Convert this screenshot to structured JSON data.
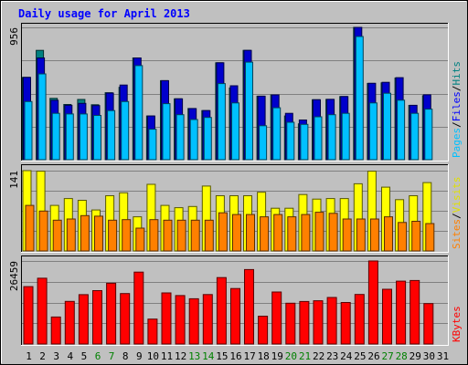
{
  "title": "Daily usage for April 2013",
  "chart_data": [
    {
      "type": "bar",
      "panel": "hits-files-pages",
      "categories": [
        "1",
        "2",
        "3",
        "4",
        "5",
        "6",
        "7",
        "8",
        "9",
        "10",
        "11",
        "12",
        "13",
        "14",
        "15",
        "16",
        "17",
        "18",
        "19",
        "20",
        "21",
        "22",
        "23",
        "24",
        "25",
        "26",
        "27",
        "28",
        "29",
        "30",
        "31"
      ],
      "max_label": "956",
      "ymax": 956,
      "legend": [
        {
          "label": "Pages",
          "color": "#00c0ff"
        },
        {
          "label": "/",
          "color": "#000000"
        },
        {
          "label": "Files",
          "color": "#0000ff"
        },
        {
          "label": "/",
          "color": "#000000"
        },
        {
          "label": "Hits",
          "color": "#008080"
        }
      ],
      "series": [
        {
          "name": "Hits",
          "color": "#008080",
          "values": [
            595,
            790,
            443,
            399,
            435,
            397,
            484,
            523,
            735,
            316,
            571,
            440,
            370,
            355,
            700,
            518,
            790,
            459,
            468,
            316,
            259,
            433,
            436,
            456,
            956,
            551,
            555,
            590,
            392,
            462,
            0
          ]
        },
        {
          "name": "Files",
          "color": "#0000cc",
          "values": [
            595,
            735,
            429,
            393,
            407,
            391,
            481,
            539,
            735,
            316,
            571,
            440,
            369,
            355,
            700,
            534,
            790,
            459,
            468,
            335,
            287,
            433,
            436,
            456,
            956,
            552,
            559,
            593,
            393,
            469,
            0
          ]
        },
        {
          "name": "Pages",
          "color": "#00c0ff",
          "values": [
            420,
            620,
            335,
            330,
            330,
            320,
            355,
            420,
            680,
            220,
            405,
            325,
            290,
            305,
            550,
            410,
            705,
            245,
            375,
            270,
            255,
            310,
            325,
            335,
            890,
            410,
            480,
            430,
            335,
            365,
            0
          ]
        }
      ]
    },
    {
      "type": "bar",
      "panel": "visits-sites",
      "categories": [
        "1",
        "2",
        "3",
        "4",
        "5",
        "6",
        "7",
        "8",
        "9",
        "10",
        "11",
        "12",
        "13",
        "14",
        "15",
        "16",
        "17",
        "18",
        "19",
        "20",
        "21",
        "22",
        "23",
        "24",
        "25",
        "26",
        "27",
        "28",
        "29",
        "30",
        "31"
      ],
      "max_label": "141",
      "ymax": 141,
      "legend": [
        {
          "label": "Sites",
          "color": "#ff8000"
        },
        {
          "label": "/",
          "color": "#000000"
        },
        {
          "label": "Visits",
          "color": "#e0e000"
        }
      ],
      "series": [
        {
          "name": "Visits",
          "color": "#ffff00",
          "values": [
            141,
            140,
            80,
            92,
            89,
            72,
            97,
            102,
            60,
            117,
            80,
            76,
            78,
            114,
            97,
            97,
            97,
            103,
            75,
            75,
            99,
            91,
            92,
            92,
            118,
            140,
            112,
            90,
            97,
            120,
            0
          ]
        },
        {
          "name": "Sites",
          "color": "#ff8000",
          "values": [
            80,
            70,
            54,
            56,
            62,
            61,
            54,
            55,
            40,
            55,
            54,
            54,
            54,
            54,
            67,
            64,
            64,
            60,
            64,
            60,
            64,
            68,
            66,
            56,
            56,
            56,
            60,
            50,
            52,
            48,
            0
          ]
        }
      ]
    },
    {
      "type": "bar",
      "panel": "kbytes",
      "categories": [
        "1",
        "2",
        "3",
        "4",
        "5",
        "6",
        "7",
        "8",
        "9",
        "10",
        "11",
        "12",
        "13",
        "14",
        "15",
        "16",
        "17",
        "18",
        "19",
        "20",
        "21",
        "22",
        "23",
        "24",
        "25",
        "26",
        "27",
        "28",
        "29",
        "30",
        "31"
      ],
      "max_label": "26459",
      "ymax": 26459,
      "legend": [
        {
          "label": "KBytes",
          "color": "#ff0000"
        }
      ],
      "series": [
        {
          "name": "KBytes",
          "color": "#ff0000",
          "values": [
            18300,
            20950,
            8600,
            13580,
            15730,
            17010,
            19350,
            16080,
            22910,
            7930,
            16280,
            15450,
            14410,
            15750,
            21160,
            17670,
            23720,
            8880,
            16580,
            13000,
            13550,
            13790,
            14840,
            13230,
            15780,
            26459,
            17450,
            20020,
            20240,
            12870,
            0
          ]
        }
      ]
    }
  ],
  "x_labels": [
    {
      "t": "1",
      "c": "#000000"
    },
    {
      "t": "2",
      "c": "#000000"
    },
    {
      "t": "3",
      "c": "#000000"
    },
    {
      "t": "4",
      "c": "#000000"
    },
    {
      "t": "5",
      "c": "#000000"
    },
    {
      "t": "6",
      "c": "#008000"
    },
    {
      "t": "7",
      "c": "#008000"
    },
    {
      "t": "8",
      "c": "#000000"
    },
    {
      "t": "9",
      "c": "#000000"
    },
    {
      "t": "10",
      "c": "#000000"
    },
    {
      "t": "11",
      "c": "#000000"
    },
    {
      "t": "12",
      "c": "#000000"
    },
    {
      "t": "13",
      "c": "#008000"
    },
    {
      "t": "14",
      "c": "#008000"
    },
    {
      "t": "15",
      "c": "#000000"
    },
    {
      "t": "16",
      "c": "#000000"
    },
    {
      "t": "17",
      "c": "#000000"
    },
    {
      "t": "18",
      "c": "#000000"
    },
    {
      "t": "19",
      "c": "#000000"
    },
    {
      "t": "20",
      "c": "#008000"
    },
    {
      "t": "21",
      "c": "#008000"
    },
    {
      "t": "22",
      "c": "#000000"
    },
    {
      "t": "23",
      "c": "#000000"
    },
    {
      "t": "24",
      "c": "#000000"
    },
    {
      "t": "25",
      "c": "#000000"
    },
    {
      "t": "26",
      "c": "#000000"
    },
    {
      "t": "27",
      "c": "#008000"
    },
    {
      "t": "28",
      "c": "#008000"
    },
    {
      "t": "29",
      "c": "#000000"
    },
    {
      "t": "30",
      "c": "#000000"
    },
    {
      "t": "31",
      "c": "#000000"
    }
  ]
}
